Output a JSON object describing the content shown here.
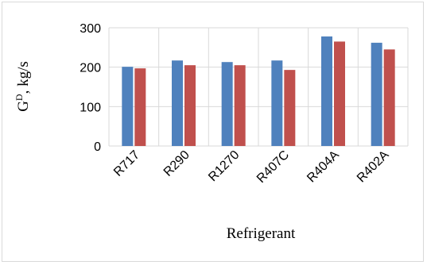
{
  "chart_data": {
    "type": "bar",
    "categories": [
      "R717",
      "R290",
      "R1270",
      "R407C",
      "R404A",
      "R402A"
    ],
    "series": [
      {
        "values": [
          201,
          217,
          213,
          217,
          278,
          262
        ],
        "color": "#4f81bd"
      },
      {
        "values": [
          197,
          205,
          205,
          193,
          265,
          245
        ],
        "color": "#c0504d"
      }
    ],
    "xlabel": "Refrigerant",
    "ylabel_main": "G",
    "ylabel_sup": "D",
    "ylabel_rest": ", kg/s",
    "ylim": [
      0,
      300
    ],
    "yticks": [
      "0",
      "100",
      "200",
      "300"
    ],
    "grid": true,
    "gridline_color": "#d9d9d9"
  }
}
